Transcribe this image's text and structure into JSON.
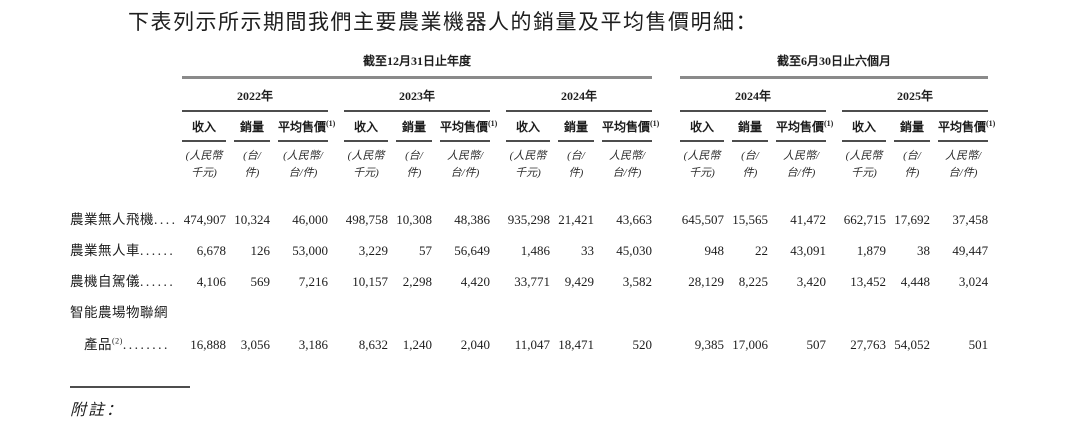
{
  "page": {
    "title": "下表列示所示期間我們主要農業機器人的銷量及平均售價明細："
  },
  "colors": {
    "text": "#1d1d1d",
    "period_rule": "#8a8a8a",
    "rule": "#4d4d4d",
    "background": "#ffffff"
  },
  "table": {
    "periods": [
      {
        "label": "截至12月31日止年度"
      },
      {
        "label": "截至6月30日止六個月"
      }
    ],
    "years": [
      "2022年",
      "2023年",
      "2024年",
      "2024年",
      "2025年"
    ],
    "columns": {
      "revenue": "收入",
      "volume": "銷量",
      "asp": "平均售價",
      "asp_sup": "(1)"
    },
    "units": {
      "revenue": [
        "(人民幣",
        "千元)"
      ],
      "volume": [
        "(台/",
        "件)"
      ],
      "asp_first": [
        "(人民幣/",
        "台/件)"
      ],
      "asp": [
        "人民幣/",
        "台/件)"
      ]
    },
    "rows": [
      {
        "label": "農業無人飛機",
        "sup": "",
        "leader": "....",
        "values": [
          "474,907",
          "10,324",
          "46,000",
          "498,758",
          "10,308",
          "48,386",
          "935,298",
          "21,421",
          "43,663",
          "645,507",
          "15,565",
          "41,472",
          "662,715",
          "17,692",
          "37,458"
        ]
      },
      {
        "label": "農業無人車",
        "sup": "",
        "leader": "......",
        "values": [
          "6,678",
          "126",
          "53,000",
          "3,229",
          "57",
          "56,649",
          "1,486",
          "33",
          "45,030",
          "948",
          "22",
          "43,091",
          "1,879",
          "38",
          "49,447"
        ]
      },
      {
        "label": "農機自駕儀",
        "sup": "",
        "leader": "......",
        "values": [
          "4,106",
          "569",
          "7,216",
          "10,157",
          "2,298",
          "4,420",
          "33,771",
          "9,429",
          "3,582",
          "28,129",
          "8,225",
          "3,420",
          "13,452",
          "4,448",
          "3,024"
        ]
      },
      {
        "label_line1": "智能農場物聯網",
        "label": "產品",
        "sup": "(2)",
        "leader": "........",
        "values": [
          "16,888",
          "3,056",
          "3,186",
          "8,632",
          "1,240",
          "2,040",
          "11,047",
          "18,471",
          "520",
          "9,385",
          "17,006",
          "507",
          "27,763",
          "54,052",
          "501"
        ]
      }
    ],
    "note_heading": "附註："
  }
}
